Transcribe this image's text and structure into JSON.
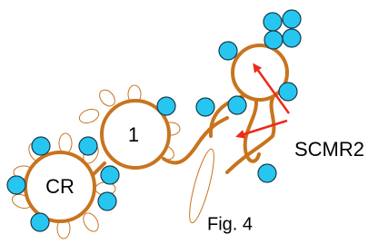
{
  "nodes": [
    {
      "label": "CR"
    },
    {
      "label": "1"
    }
  ],
  "annotation": {
    "label": "SCMR2"
  },
  "caption": "Fig. 4"
}
